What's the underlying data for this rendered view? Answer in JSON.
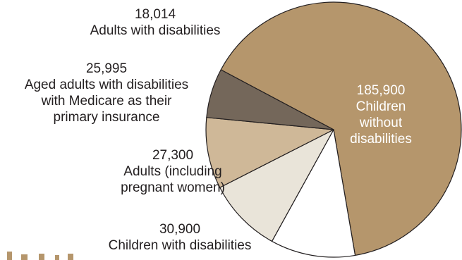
{
  "chart_data": {
    "type": "pie",
    "slices": [
      {
        "label": "Children without disabilities",
        "value": 185900,
        "value_text": "185,900",
        "color": "#b5966c",
        "label_lines": [
          "Children",
          "without",
          "disabilities"
        ]
      },
      {
        "label": "Children with disabilities",
        "value": 30900,
        "value_text": "30,900",
        "color": "#ffffff",
        "label_lines": [
          "Children with disabilities"
        ]
      },
      {
        "label": "Adults (including pregnant women)",
        "value": 27300,
        "value_text": "27,300",
        "color": "#e9e4d9",
        "label_lines": [
          "Adults (including",
          "pregnant women)"
        ]
      },
      {
        "label": "Aged adults with disabilities with Medicare as their primary insurance",
        "value": 25995,
        "value_text": "25,995",
        "color": "#cfb898",
        "label_lines": [
          "Aged adults with disabilities",
          "with Medicare as their",
          "primary insurance"
        ]
      },
      {
        "label": "Adults with disabilities",
        "value": 18014,
        "value_text": "18,014",
        "color": "#74675a",
        "label_lines": [
          "Adults with disabilities"
        ]
      }
    ]
  }
}
